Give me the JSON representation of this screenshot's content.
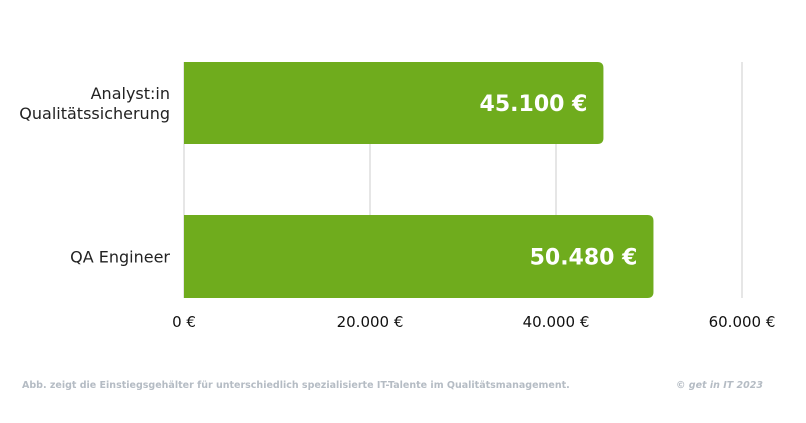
{
  "chart_data": {
    "type": "bar",
    "orientation": "horizontal",
    "categories": [
      "Analyst:in Qualitätssicherung",
      "QA Engineer"
    ],
    "category_lines": [
      [
        "Analyst:in",
        "Qualitätssicherung"
      ],
      [
        "QA Engineer"
      ]
    ],
    "values": [
      45100,
      50480
    ],
    "value_labels": [
      "45.100 €",
      "50.480 €"
    ],
    "xlim": [
      0,
      60000
    ],
    "ticks": [
      0,
      20000,
      40000,
      60000
    ],
    "tick_labels": [
      "0 €",
      "20.000 €",
      "40.000 €",
      "60.000 €"
    ],
    "grid": true,
    "bar_color": "#6fac1d",
    "grid_color": "#cccccc"
  },
  "footer": {
    "caption": "Abb. zeigt die Einstiegsgehälter für unterschiedlich spezialisierte IT-Talente im Qualitätsmanagement.",
    "copyright": "© get in IT 2023"
  }
}
